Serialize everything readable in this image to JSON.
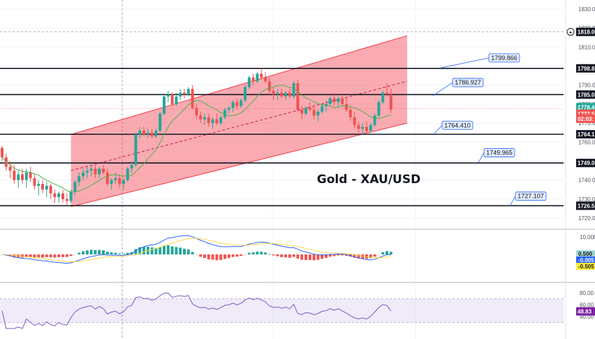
{
  "chart_data": [
    {
      "type": "candlestick",
      "title": "Gold - XAU/USD",
      "ylim": [
        1716,
        1834
      ],
      "y_ticks": [
        "1830.00",
        "1820.00",
        "1810.00",
        "1800.00",
        "1790.00",
        "1780.00",
        "1770.00",
        "1760.00",
        "1750.00",
        "1740.00",
        "1730.00",
        "1720.00"
      ],
      "current_price_label": "1818.00",
      "price_tags": [
        {
          "label": "1798.8",
          "value": 1798.8,
          "color": "#131722"
        },
        {
          "label": "1785.0",
          "value": 1785.0,
          "color": "#131722"
        },
        {
          "label": "1778.4",
          "value": 1778.4,
          "color": "#26a69a"
        },
        {
          "label": "1777.5",
          "value": 1774.9,
          "color": "#ef5350"
        },
        {
          "label": "02:03:",
          "value": 1772.3,
          "color": "#ef5350"
        },
        {
          "label": "1764.1",
          "value": 1764.1,
          "color": "#131722"
        },
        {
          "label": "1749.0",
          "value": 1749.0,
          "color": "#131722"
        },
        {
          "label": "1726.5",
          "value": 1726.5,
          "color": "#131722"
        }
      ],
      "horizontal_levels": [
        1798.8,
        1785.0,
        1764.1,
        1749.0,
        1726.5
      ],
      "callouts": [
        {
          "label": "1799.866",
          "value": 1799.866
        },
        {
          "label": "1786.927",
          "value": 1786.927
        },
        {
          "label": "1764.410",
          "value": 1764.41
        },
        {
          "label": "1749.965",
          "value": 1749.965
        },
        {
          "label": "1727.107",
          "value": 1727.107
        }
      ],
      "channel": {
        "start_bar": 17,
        "end_bar": 100,
        "upper": [
          1764,
          1816
        ],
        "lower": [
          1726,
          1770
        ],
        "mid": [
          1745,
          1792
        ]
      },
      "candles": [
        [
          1757,
          1758,
          1750,
          1752
        ],
        [
          1752,
          1754,
          1745,
          1747
        ],
        [
          1747,
          1750,
          1741,
          1745
        ],
        [
          1745,
          1748,
          1738,
          1740
        ],
        [
          1740,
          1745,
          1736,
          1743
        ],
        [
          1743,
          1746,
          1738,
          1740
        ],
        [
          1740,
          1746,
          1736,
          1744
        ],
        [
          1744,
          1747,
          1739,
          1741
        ],
        [
          1741,
          1743,
          1735,
          1737
        ],
        [
          1737,
          1740,
          1732,
          1738
        ],
        [
          1738,
          1740,
          1733,
          1735
        ],
        [
          1735,
          1739,
          1731,
          1737
        ],
        [
          1737,
          1738,
          1730,
          1733
        ],
        [
          1733,
          1735,
          1728,
          1731
        ],
        [
          1731,
          1734,
          1728,
          1733
        ],
        [
          1733,
          1735,
          1728,
          1730
        ],
        [
          1730,
          1733,
          1727,
          1729
        ],
        [
          1729,
          1735,
          1728,
          1734
        ],
        [
          1734,
          1740,
          1732,
          1739
        ],
        [
          1739,
          1744,
          1737,
          1742
        ],
        [
          1742,
          1746,
          1740,
          1744
        ],
        [
          1744,
          1747,
          1741,
          1745
        ],
        [
          1745,
          1748,
          1742,
          1746
        ],
        [
          1746,
          1748,
          1741,
          1743
        ],
        [
          1743,
          1747,
          1741,
          1746
        ],
        [
          1746,
          1748,
          1743,
          1744
        ],
        [
          1744,
          1746,
          1737,
          1738
        ],
        [
          1738,
          1741,
          1735,
          1740
        ],
        [
          1740,
          1744,
          1738,
          1741
        ],
        [
          1741,
          1743,
          1736,
          1738
        ],
        [
          1738,
          1741,
          1735,
          1740
        ],
        [
          1740,
          1747,
          1739,
          1746
        ],
        [
          1746,
          1750,
          1744,
          1748
        ],
        [
          1748,
          1765,
          1747,
          1764
        ],
        [
          1764,
          1768,
          1762,
          1766
        ],
        [
          1766,
          1768,
          1763,
          1764
        ],
        [
          1764,
          1767,
          1762,
          1765
        ],
        [
          1765,
          1767,
          1762,
          1763
        ],
        [
          1763,
          1767,
          1762,
          1766
        ],
        [
          1766,
          1776,
          1765,
          1775
        ],
        [
          1775,
          1785,
          1774,
          1784
        ],
        [
          1784,
          1787,
          1781,
          1785
        ],
        [
          1785,
          1786,
          1779,
          1780
        ],
        [
          1780,
          1786,
          1779,
          1784
        ],
        [
          1784,
          1788,
          1782,
          1786
        ],
        [
          1786,
          1788,
          1783,
          1785
        ],
        [
          1785,
          1789,
          1784,
          1788
        ],
        [
          1788,
          1790,
          1777,
          1778
        ],
        [
          1778,
          1780,
          1772,
          1774
        ],
        [
          1774,
          1776,
          1770,
          1772
        ],
        [
          1772,
          1775,
          1769,
          1773
        ],
        [
          1773,
          1775,
          1768,
          1770
        ],
        [
          1770,
          1773,
          1767,
          1772
        ],
        [
          1772,
          1775,
          1769,
          1770
        ],
        [
          1770,
          1774,
          1769,
          1773
        ],
        [
          1773,
          1778,
          1772,
          1777
        ],
        [
          1777,
          1779,
          1775,
          1778
        ],
        [
          1778,
          1782,
          1776,
          1781
        ],
        [
          1781,
          1783,
          1777,
          1779
        ],
        [
          1779,
          1783,
          1778,
          1782
        ],
        [
          1782,
          1790,
          1781,
          1789
        ],
        [
          1789,
          1795,
          1788,
          1794
        ],
        [
          1794,
          1796,
          1790,
          1792
        ],
        [
          1792,
          1797,
          1791,
          1796
        ],
        [
          1796,
          1799,
          1793,
          1794
        ],
        [
          1794,
          1797,
          1791,
          1792
        ],
        [
          1792,
          1794,
          1785,
          1787
        ],
        [
          1787,
          1789,
          1782,
          1785
        ],
        [
          1785,
          1788,
          1782,
          1786
        ],
        [
          1786,
          1788,
          1783,
          1784
        ],
        [
          1784,
          1787,
          1782,
          1786
        ],
        [
          1786,
          1788,
          1783,
          1784
        ],
        [
          1784,
          1792,
          1783,
          1791
        ],
        [
          1791,
          1793,
          1776,
          1777
        ],
        [
          1777,
          1779,
          1772,
          1775
        ],
        [
          1775,
          1779,
          1774,
          1778
        ],
        [
          1778,
          1781,
          1776,
          1777
        ],
        [
          1777,
          1780,
          1772,
          1774
        ],
        [
          1774,
          1777,
          1771,
          1776
        ],
        [
          1776,
          1780,
          1775,
          1779
        ],
        [
          1779,
          1782,
          1776,
          1780
        ],
        [
          1780,
          1784,
          1779,
          1783
        ],
        [
          1783,
          1786,
          1779,
          1781
        ],
        [
          1781,
          1784,
          1778,
          1783
        ],
        [
          1783,
          1785,
          1779,
          1780
        ],
        [
          1780,
          1784,
          1776,
          1777
        ],
        [
          1777,
          1779,
          1771,
          1773
        ],
        [
          1773,
          1776,
          1767,
          1769
        ],
        [
          1769,
          1771,
          1765,
          1767
        ],
        [
          1767,
          1770,
          1764,
          1768
        ],
        [
          1768,
          1771,
          1764,
          1766
        ],
        [
          1766,
          1770,
          1765,
          1769
        ],
        [
          1769,
          1775,
          1768,
          1774
        ],
        [
          1774,
          1782,
          1773,
          1781
        ],
        [
          1781,
          1787,
          1780,
          1786
        ],
        [
          1786,
          1791,
          1784,
          1785
        ],
        [
          1785,
          1788,
          1775,
          1777
        ]
      ]
    },
    {
      "type": "macd",
      "y_ticks": [
        "10.000"
      ],
      "value_tags": [
        {
          "label": "0.500",
          "color": "#a6d8d2",
          "text": "#131722"
        },
        {
          "label": "-0.005",
          "color": "#2962ff",
          "text": "#ffffff"
        },
        {
          "label": "-0.505",
          "color": "#ffeb3b",
          "text": "#131722"
        }
      ]
    },
    {
      "type": "rsi",
      "y_ticks": [
        "80.00",
        "60.00",
        "40.00"
      ],
      "value_tag": {
        "label": "48.83",
        "color": "#7b1fa2"
      }
    }
  ]
}
